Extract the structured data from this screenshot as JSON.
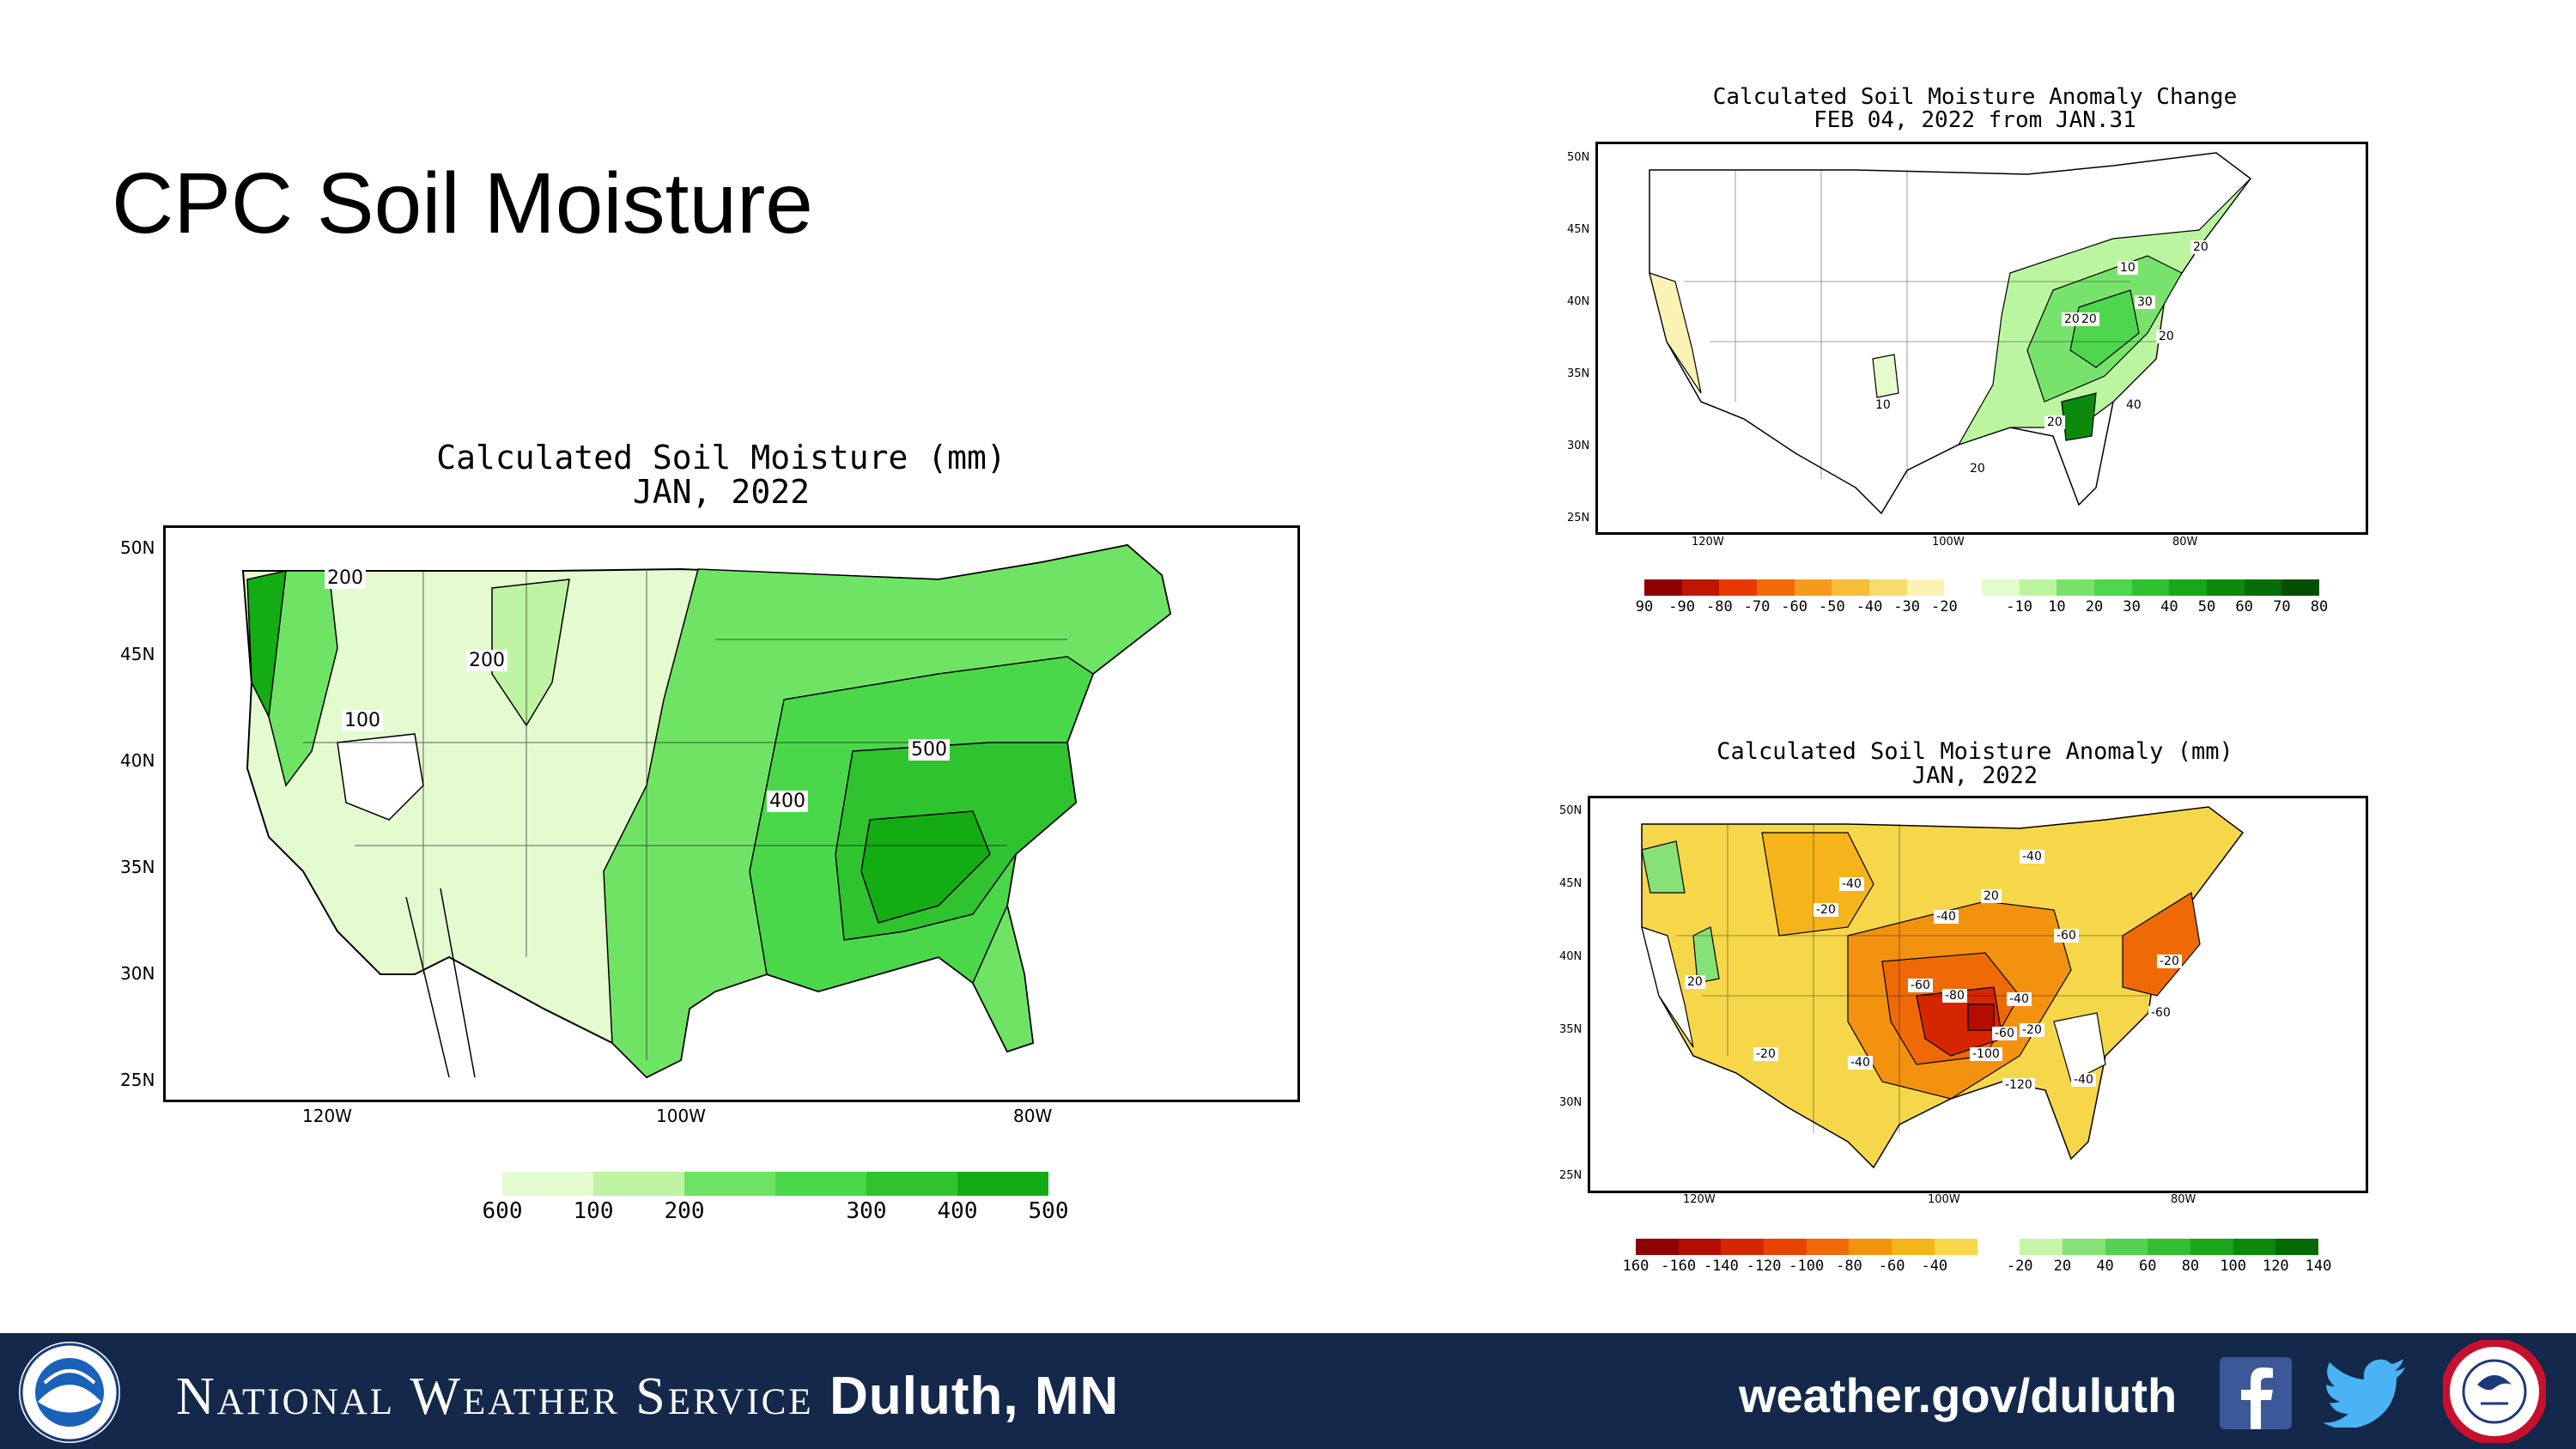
{
  "slide": {
    "title": "CPC Soil Moisture"
  },
  "main_map": {
    "title_line1": "Calculated Soil Moisture (mm)",
    "title_line2": "JAN, 2022",
    "lat_labels": [
      "50N",
      "45N",
      "40N",
      "35N",
      "30N",
      "25N"
    ],
    "lon_labels": [
      "120W",
      "100W",
      "80W"
    ],
    "contour_labels": [
      "200",
      "200",
      "100",
      "400",
      "500"
    ],
    "legend_labels": [
      "100",
      "200",
      "300",
      "400",
      "500",
      "600"
    ],
    "legend_colors": [
      "#e3fbcf",
      "#bff4a4",
      "#6fe464",
      "#4ad84a",
      "#2fc42f",
      "#13ac13"
    ]
  },
  "change_map": {
    "title_line1": "Calculated Soil Moisture Anomaly Change",
    "title_line2": "FEB 04, 2022 from JAN.31",
    "lat_labels": [
      "50N",
      "45N",
      "40N",
      "35N",
      "30N",
      "25N"
    ],
    "lon_labels": [
      "120W",
      "100W",
      "80W"
    ],
    "contour_labels": [
      "10",
      "20",
      "30",
      "20",
      "20",
      "10",
      "20",
      "40",
      "20",
      "20"
    ],
    "legend_labels": [
      "-90",
      "-80",
      "-70",
      "-60",
      "-50",
      "-40",
      "-30",
      "-20",
      "-10",
      "10",
      "20",
      "30",
      "40",
      "50",
      "60",
      "70",
      "80",
      "90"
    ],
    "legend_colors": [
      "#8f0000",
      "#c21500",
      "#e83a00",
      "#f06a0a",
      "#f59a1c",
      "#f6bd36",
      "#f8dc6b",
      "#fbf3b6",
      "#ffffff",
      "#e4fbcc",
      "#bcf5a0",
      "#78e36c",
      "#4fd64f",
      "#2fc12f",
      "#19a619",
      "#0c8a0c",
      "#066e06",
      "#034e03"
    ]
  },
  "anomaly_map": {
    "title_line1": "Calculated Soil Moisture Anomaly (mm)",
    "title_line2": "JAN, 2022",
    "lat_labels": [
      "50N",
      "45N",
      "40N",
      "35N",
      "30N",
      "25N"
    ],
    "lon_labels": [
      "120W",
      "100W",
      "80W"
    ],
    "contour_labels": [
      "-40",
      "-20",
      "-40",
      "-40",
      "-60",
      "-60",
      "-80",
      "-60",
      "-40",
      "-20",
      "-100",
      "-120",
      "-40",
      "-60",
      "-20",
      "-40",
      "-20",
      "20",
      "20"
    ],
    "legend_labels": [
      "-160",
      "-140",
      "-120",
      "-100",
      "-80",
      "-60",
      "-40",
      "-20",
      "20",
      "40",
      "60",
      "80",
      "100",
      "120",
      "140",
      "160"
    ],
    "legend_colors": [
      "#8f0000",
      "#b30d00",
      "#d52600",
      "#e84400",
      "#ef6a06",
      "#f3920f",
      "#f4b41a",
      "#f7d74a",
      "#ffffff",
      "#c6f4a8",
      "#86e277",
      "#54d24f",
      "#33bf33",
      "#1aa51a",
      "#0c890c",
      "#046a04"
    ]
  },
  "footer": {
    "org_prefix": "National Weather Service",
    "office": "Duluth, MN",
    "url": "weather.gov/duluth"
  },
  "colors": {
    "footer_bg": "#13284a",
    "water": "#ffffff",
    "land_dry": "#e3fbcf"
  }
}
